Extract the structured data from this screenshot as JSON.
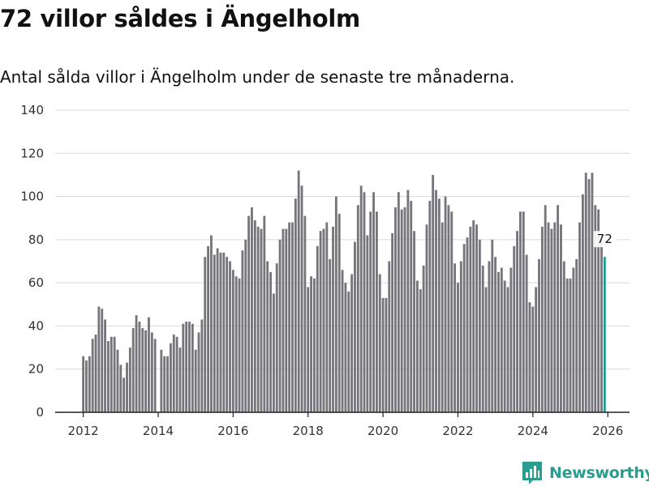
{
  "title": "72 villor såldes i Ängelholm",
  "subtitle": "Antal sålda villor i Ängelholm under de senaste tre månaderna.",
  "brand": {
    "name": "Newsworthy",
    "color": "#2a9d8f",
    "logo_icon": "bar-chart-icon"
  },
  "colors": {
    "bar": "#76757b",
    "highlight": "#1f9d90",
    "grid": "#d9d9d9",
    "axis": "#222222"
  },
  "chart_data": {
    "type": "bar",
    "title": "Antal sålda villor i Ängelholm",
    "xlabel": "",
    "ylabel": "",
    "ylim": [
      0,
      140
    ],
    "yticks": [
      0,
      20,
      40,
      60,
      80,
      100,
      120,
      140
    ],
    "xlim": [
      2011.25,
      2026.58
    ],
    "xticks": [
      2012,
      2014,
      2016,
      2018,
      2020,
      2022,
      2024,
      2026
    ],
    "start": 2012.0,
    "step_per_month": 0.08333,
    "highlight_label": "72",
    "values": [
      26,
      24,
      26,
      34,
      36,
      49,
      48,
      43,
      33,
      35,
      35,
      29,
      22,
      16,
      23,
      30,
      39,
      45,
      42,
      39,
      38,
      44,
      37,
      34,
      0,
      29,
      26,
      26,
      32,
      36,
      35,
      30,
      41,
      42,
      42,
      41,
      29,
      37,
      43,
      72,
      77,
      82,
      73,
      76,
      74,
      74,
      72,
      70,
      66,
      63,
      62,
      75,
      80,
      91,
      95,
      89,
      86,
      85,
      91,
      70,
      65,
      55,
      69,
      80,
      85,
      85,
      88,
      88,
      99,
      112,
      105,
      91,
      58,
      63,
      62,
      77,
      84,
      85,
      88,
      71,
      86,
      100,
      92,
      66,
      60,
      56,
      64,
      79,
      96,
      105,
      102,
      82,
      93,
      102,
      93,
      64,
      53,
      53,
      70,
      83,
      95,
      102,
      94,
      95,
      103,
      98,
      84,
      61,
      57,
      68,
      87,
      98,
      110,
      103,
      99,
      88,
      100,
      96,
      93,
      69,
      60,
      70,
      78,
      81,
      86,
      89,
      87,
      80,
      68,
      58,
      70,
      80,
      72,
      65,
      67,
      61,
      58,
      67,
      77,
      84,
      93,
      93,
      73,
      51,
      49,
      58,
      71,
      86,
      96,
      88,
      85,
      88,
      96,
      87,
      70,
      62,
      62,
      67,
      71,
      88,
      101,
      111,
      108,
      111,
      96,
      94,
      80,
      72
    ]
  }
}
